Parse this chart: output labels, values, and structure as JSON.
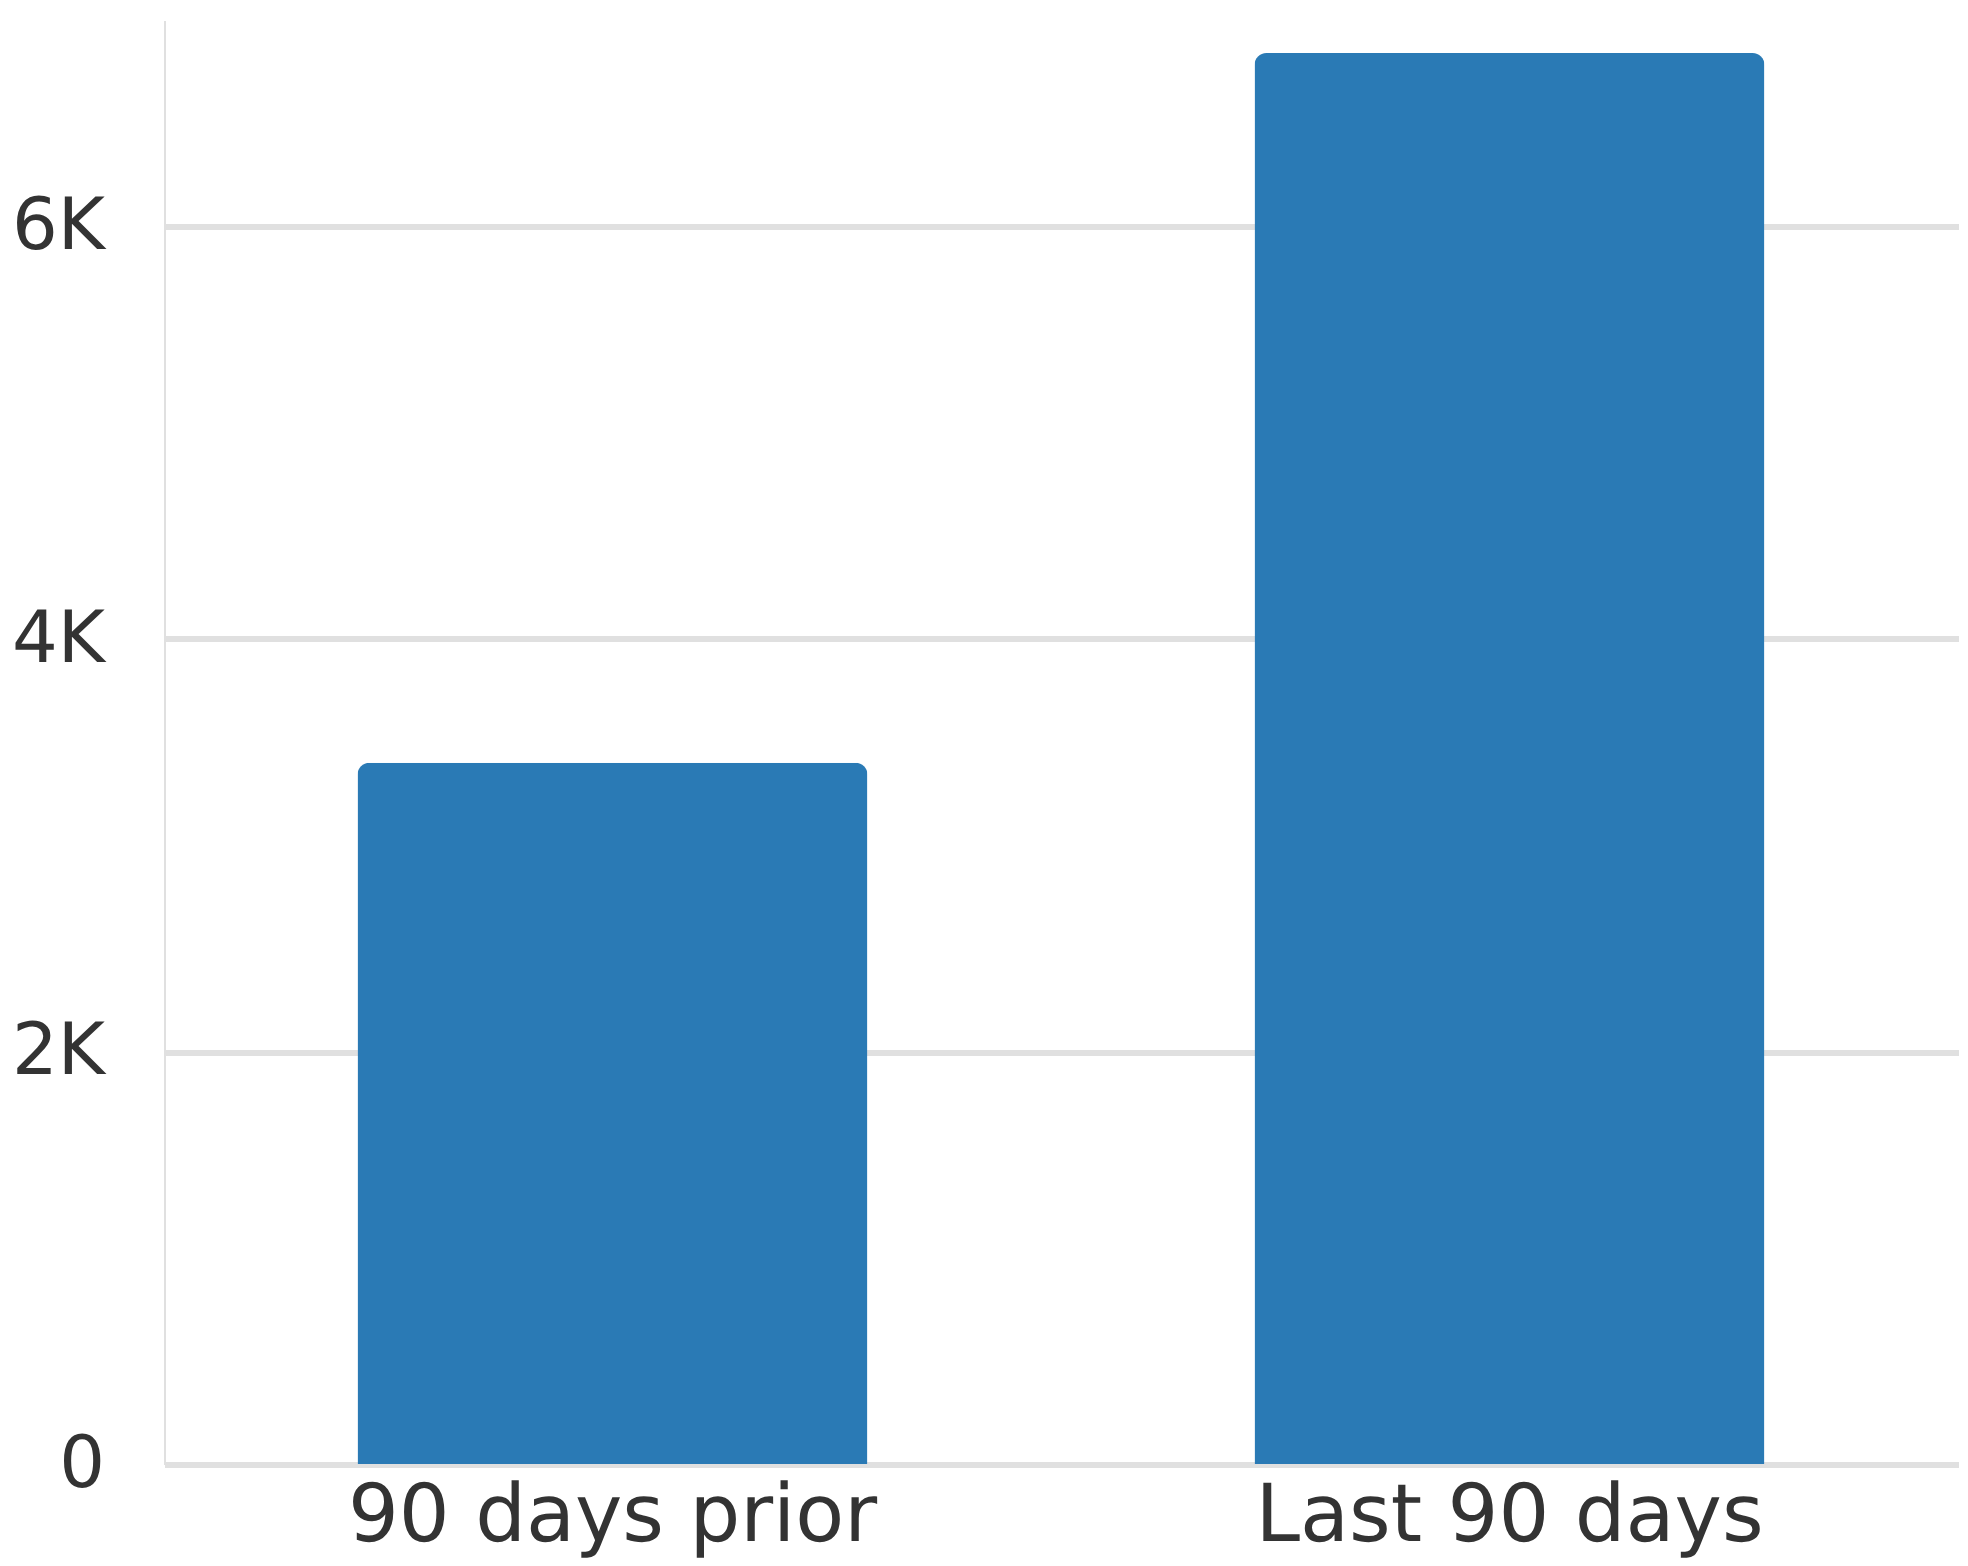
{
  "chart_data": {
    "type": "bar",
    "categories": [
      "90 days prior",
      "Last 90 days"
    ],
    "values": [
      3400,
      6840
    ],
    "color": "#2a7ab5",
    "ylim": [
      0,
      7000
    ],
    "yticks": [
      0,
      {
        "value": 2000,
        "label": "2K"
      },
      {
        "value": 4000,
        "label": "4K"
      },
      {
        "value": 6000,
        "label": "6K"
      }
    ],
    "grid": "y"
  }
}
